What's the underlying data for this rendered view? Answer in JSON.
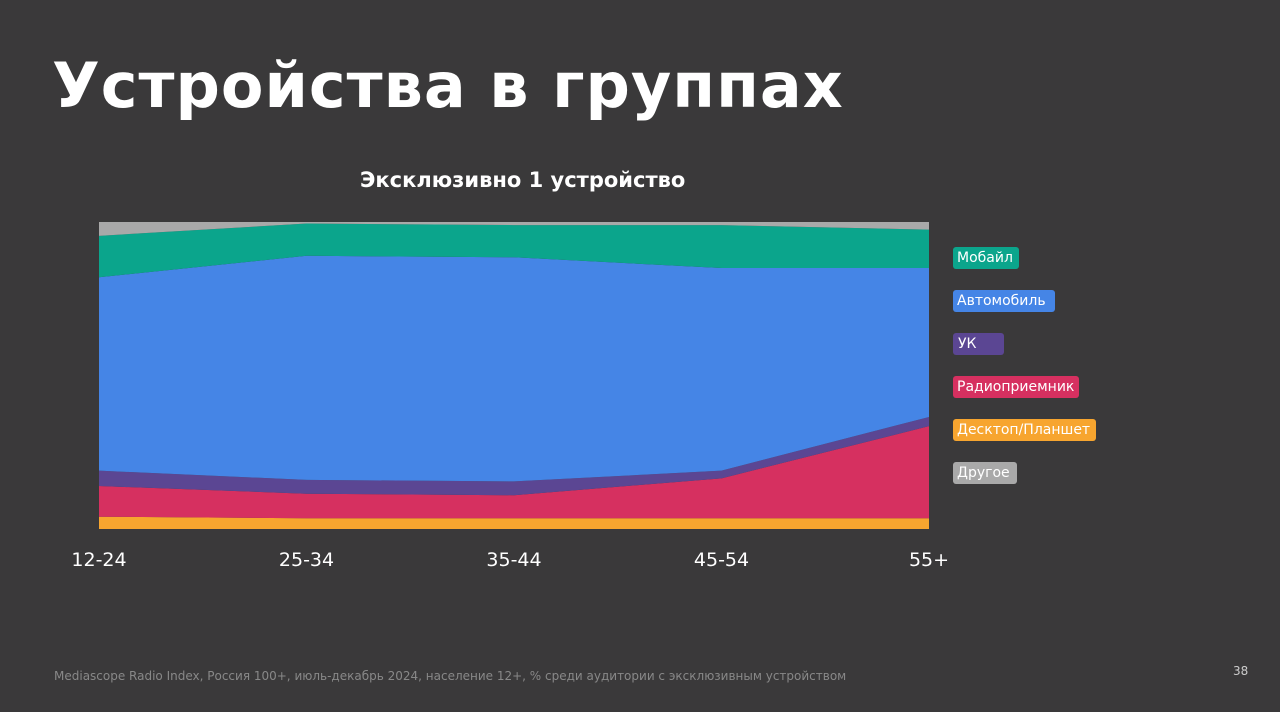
{
  "slide": {
    "title": "Устройства в группах",
    "footnote": "Mediascope Radio Index, Россия 100+, июль-декабрь 2024, население 12+, % среди аудитории с эксклюзивным устройством",
    "page_number": "38"
  },
  "colors": {
    "background": "#3a393a",
    "Мобайл": "#0ba58c",
    "Автомобиль": "#4585e6",
    "УК": "#5b4693",
    "Радиоприемник": "#d63060",
    "Десктоп/Планшет": "#f7a52f",
    "Другое": "#a9a9a9"
  },
  "chart_data": {
    "type": "area",
    "stacked": true,
    "percent": true,
    "title": "Эксклюзивно 1 устройство",
    "categories": [
      "12-24",
      "25-34",
      "35-44",
      "45-54",
      "55+"
    ],
    "series": [
      {
        "name": "Десктоп/Планшет",
        "values": [
          4,
          3.5,
          3.5,
          3.5,
          3.5
        ]
      },
      {
        "name": "Радиоприемник",
        "values": [
          10,
          8,
          7.5,
          13,
          30
        ]
      },
      {
        "name": "УК",
        "values": [
          5,
          4.5,
          4.5,
          2.5,
          3
        ]
      },
      {
        "name": "Автомобиль",
        "values": [
          63,
          73,
          73,
          66,
          48.5
        ]
      },
      {
        "name": "Мобайл",
        "values": [
          13.5,
          10.5,
          10.5,
          14,
          12.5
        ]
      },
      {
        "name": "Другое",
        "values": [
          4.5,
          0.5,
          1,
          1,
          2.5
        ]
      }
    ],
    "legend": {
      "position": "right",
      "order": [
        "Мобайл",
        "Автомобиль",
        "УК",
        "Радиоприемник",
        "Десктоп/Планшет",
        "Другое"
      ]
    },
    "ylim": [
      0,
      100
    ],
    "grid": false
  }
}
